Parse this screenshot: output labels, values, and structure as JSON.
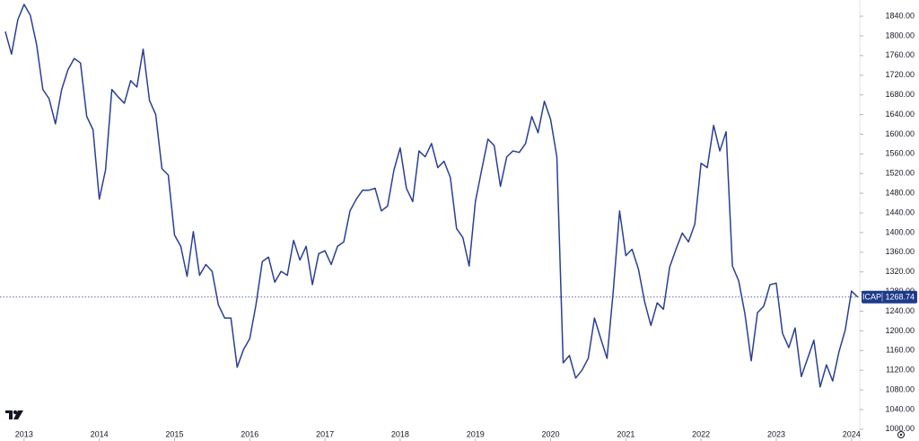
{
  "chart_data": {
    "type": "line",
    "series": [
      {
        "name": "ICAP",
        "color": "#2a3f94",
        "values": [
          1809,
          1763,
          1833,
          1864,
          1842,
          1782,
          1691,
          1672,
          1621,
          1691,
          1731,
          1754,
          1745,
          1636,
          1609,
          1468,
          1527,
          1691,
          1676,
          1663,
          1709,
          1696,
          1773,
          1669,
          1640,
          1530,
          1517,
          1395,
          1372,
          1311,
          1402,
          1313,
          1335,
          1321,
          1253,
          1226,
          1226,
          1126,
          1162,
          1184,
          1253,
          1341,
          1350,
          1299,
          1321,
          1313,
          1384,
          1344,
          1372,
          1294,
          1357,
          1363,
          1335,
          1372,
          1381,
          1444,
          1468,
          1486,
          1486,
          1490,
          1444,
          1454,
          1527,
          1572,
          1490,
          1463,
          1566,
          1554,
          1581,
          1532,
          1545,
          1512,
          1408,
          1390,
          1332,
          1463,
          1527,
          1590,
          1577,
          1494,
          1554,
          1566,
          1563,
          1581,
          1636,
          1603,
          1667,
          1630,
          1554,
          1135,
          1150,
          1104,
          1120,
          1144,
          1226,
          1184,
          1144,
          1281,
          1444,
          1353,
          1366,
          1326,
          1259,
          1211,
          1257,
          1244,
          1330,
          1366,
          1399,
          1381,
          1417,
          1541,
          1532,
          1618,
          1566,
          1605,
          1332,
          1302,
          1235,
          1139,
          1237,
          1250,
          1294,
          1297,
          1195,
          1166,
          1206,
          1107,
          1144,
          1181,
          1086,
          1131,
          1098,
          1157,
          1202,
          1281,
          1268.74
        ]
      }
    ],
    "x": [
      2012.75,
      2012.833,
      2012.917,
      2013,
      2013.083,
      2013.167,
      2013.25,
      2013.333,
      2013.417,
      2013.5,
      2013.583,
      2013.667,
      2013.75,
      2013.833,
      2013.917,
      2014,
      2014.083,
      2014.167,
      2014.25,
      2014.333,
      2014.417,
      2014.5,
      2014.583,
      2014.667,
      2014.75,
      2014.833,
      2014.917,
      2015,
      2015.083,
      2015.167,
      2015.25,
      2015.333,
      2015.417,
      2015.5,
      2015.583,
      2015.667,
      2015.75,
      2015.833,
      2015.917,
      2016,
      2016.083,
      2016.167,
      2016.25,
      2016.333,
      2016.417,
      2016.5,
      2016.583,
      2016.667,
      2016.75,
      2016.833,
      2016.917,
      2017,
      2017.083,
      2017.167,
      2017.25,
      2017.333,
      2017.417,
      2017.5,
      2017.583,
      2017.667,
      2017.75,
      2017.833,
      2017.917,
      2018,
      2018.083,
      2018.167,
      2018.25,
      2018.333,
      2018.417,
      2018.5,
      2018.583,
      2018.667,
      2018.75,
      2018.833,
      2018.917,
      2019,
      2019.083,
      2019.167,
      2019.25,
      2019.333,
      2019.417,
      2019.5,
      2019.583,
      2019.667,
      2019.75,
      2019.833,
      2019.917,
      2020,
      2020.083,
      2020.167,
      2020.25,
      2020.333,
      2020.417,
      2020.5,
      2020.583,
      2020.667,
      2020.75,
      2020.833,
      2020.917,
      2021,
      2021.083,
      2021.167,
      2021.25,
      2021.333,
      2021.417,
      2021.5,
      2021.583,
      2021.667,
      2021.75,
      2021.833,
      2021.917,
      2022,
      2022.083,
      2022.167,
      2022.25,
      2022.333,
      2022.417,
      2022.5,
      2022.583,
      2022.667,
      2022.75,
      2022.833,
      2022.917,
      2023,
      2023.083,
      2023.167,
      2023.25,
      2023.333,
      2023.417,
      2023.5,
      2023.583,
      2023.667,
      2023.75,
      2023.833,
      2023.917,
      2024,
      2024.083
    ],
    "xlim": [
      2012.68,
      2024.11
    ],
    "xticks": [
      2013,
      2014,
      2015,
      2016,
      2017,
      2018,
      2019,
      2020,
      2021,
      2022,
      2023,
      2024
    ],
    "ylim": [
      976,
      1873
    ],
    "yticks": [
      {
        "value": 1000,
        "label": "1000.00"
      },
      {
        "value": 1040,
        "label": "1040.00"
      },
      {
        "value": 1080,
        "label": "1080.00"
      },
      {
        "value": 1120,
        "label": "1120.00"
      },
      {
        "value": 1160,
        "label": "1160.00"
      },
      {
        "value": 1200,
        "label": "1200.00"
      },
      {
        "value": 1240,
        "label": "1240.00"
      },
      {
        "value": 1280,
        "label": "1280.00"
      },
      {
        "value": 1320,
        "label": "1320.00"
      },
      {
        "value": 1360,
        "label": "1360.00"
      },
      {
        "value": 1400,
        "label": "1400.00"
      },
      {
        "value": 1440,
        "label": "1440.00"
      },
      {
        "value": 1480,
        "label": "1480.00"
      },
      {
        "value": 1520,
        "label": "1520.00"
      },
      {
        "value": 1560,
        "label": "1560.00"
      },
      {
        "value": 1600,
        "label": "1600.00"
      },
      {
        "value": 1640,
        "label": "1640.00"
      },
      {
        "value": 1680,
        "label": "1680.00"
      },
      {
        "value": 1720,
        "label": "1720.00"
      },
      {
        "value": 1760,
        "label": "1760.00"
      },
      {
        "value": 1800,
        "label": "1800.00"
      },
      {
        "value": 1840,
        "label": "1840.00"
      }
    ],
    "grid": false
  }
}
